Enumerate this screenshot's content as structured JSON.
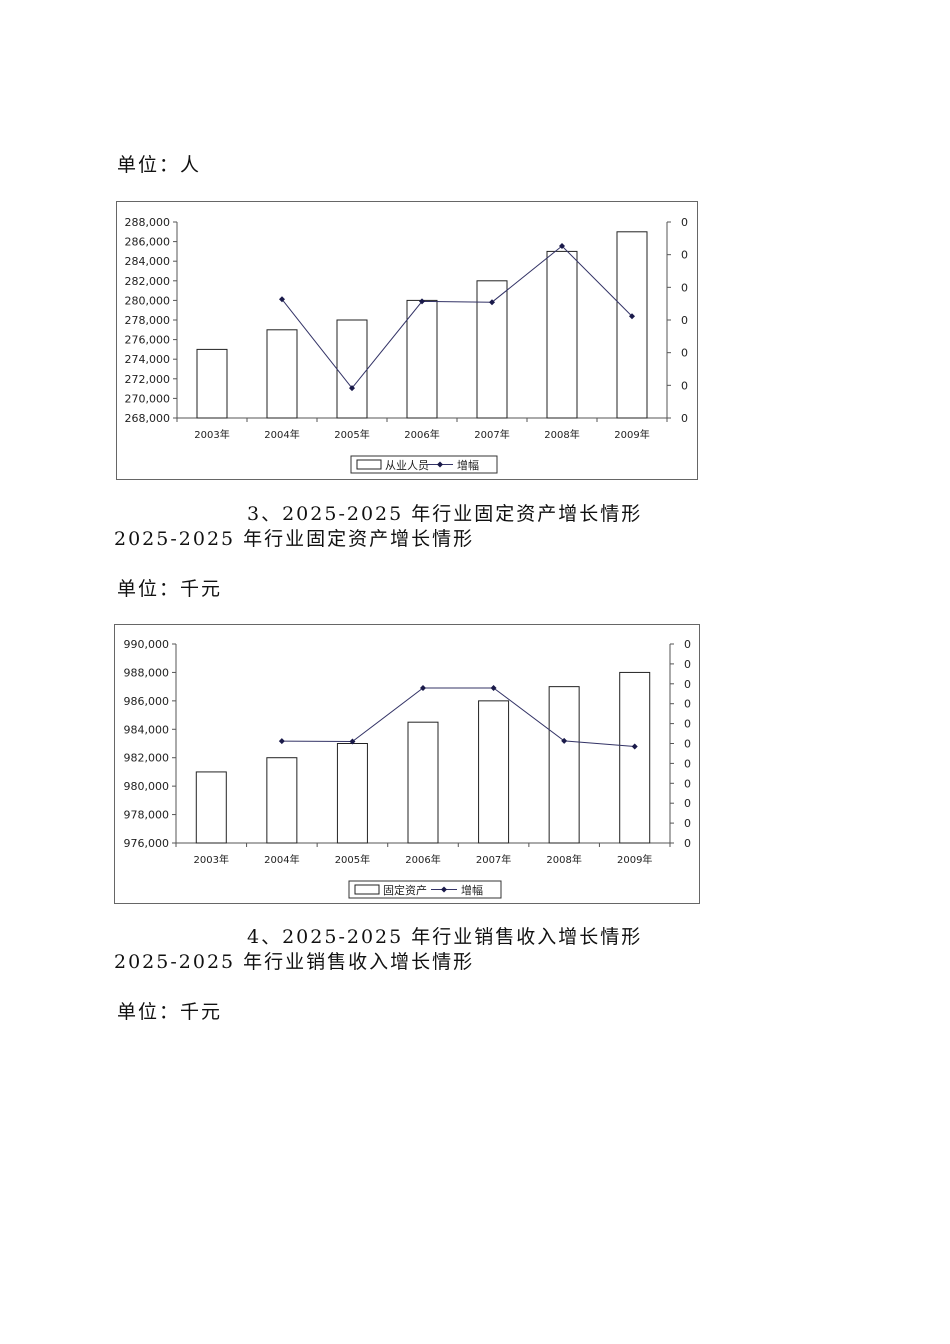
{
  "unit_1": "单位：人",
  "chart_1_caption": "",
  "heading_3_main": "3、2025-2025 年行业固定资产增长情形",
  "heading_3_sub": "2025-2025 年行业固定资产增长情形",
  "unit_2": "单位：千元",
  "heading_4_main": "4、2025-2025 年行业销售收入增长情形",
  "heading_4_sub": "2025-2025 年行业销售收入增长情形",
  "unit_3": "单位：千元",
  "chart_data": [
    {
      "type": "bar",
      "categories": [
        "2003年",
        "2004年",
        "2005年",
        "2006年",
        "2007年",
        "2008年",
        "2009年"
      ],
      "series": [
        {
          "name": "从业人员",
          "type": "bar",
          "axis": "left",
          "values": [
            275000,
            277000,
            278000,
            280000,
            282000,
            285000,
            287000
          ]
        },
        {
          "name": "增幅",
          "type": "line",
          "axis": "right",
          "values": [
            null,
            0.727,
            0.183,
            0.714,
            0.709,
            1.053,
            0.623
          ]
        }
      ],
      "ylim": [
        268000,
        288000
      ],
      "yticks": [
        "268,000",
        "270,000",
        "272,000",
        "274,000",
        "276,000",
        "278,000",
        "280,000",
        "282,000",
        "284,000",
        "286,000",
        "288,000"
      ],
      "y2ticks": [
        "0",
        "0",
        "0",
        "0",
        "0",
        "0",
        "0"
      ],
      "y2lim": [
        0,
        1.2
      ],
      "legend": "bottom"
    },
    {
      "type": "bar",
      "categories": [
        "2003年",
        "2004年",
        "2005年",
        "2006年",
        "2007年",
        "2008年",
        "2009年"
      ],
      "series": [
        {
          "name": "固定资产",
          "type": "bar",
          "axis": "left",
          "values": [
            981000,
            982000,
            983000,
            984500,
            986000,
            987000,
            988000
          ]
        },
        {
          "name": "增幅",
          "type": "line",
          "axis": "right",
          "values": [
            null,
            0.512,
            0.51,
            0.779,
            0.779,
            0.513,
            0.485
          ]
        }
      ],
      "ylim": [
        976000,
        990000
      ],
      "yticks": [
        "976,000",
        "978,000",
        "980,000",
        "982,000",
        "984,000",
        "986,000",
        "988,000",
        "990,000"
      ],
      "y2ticks": [
        "0",
        "0",
        "0",
        "0",
        "0",
        "0",
        "0",
        "0",
        "0",
        "0",
        "0"
      ],
      "y2lim": [
        0,
        1.0
      ],
      "legend": "bottom"
    }
  ]
}
